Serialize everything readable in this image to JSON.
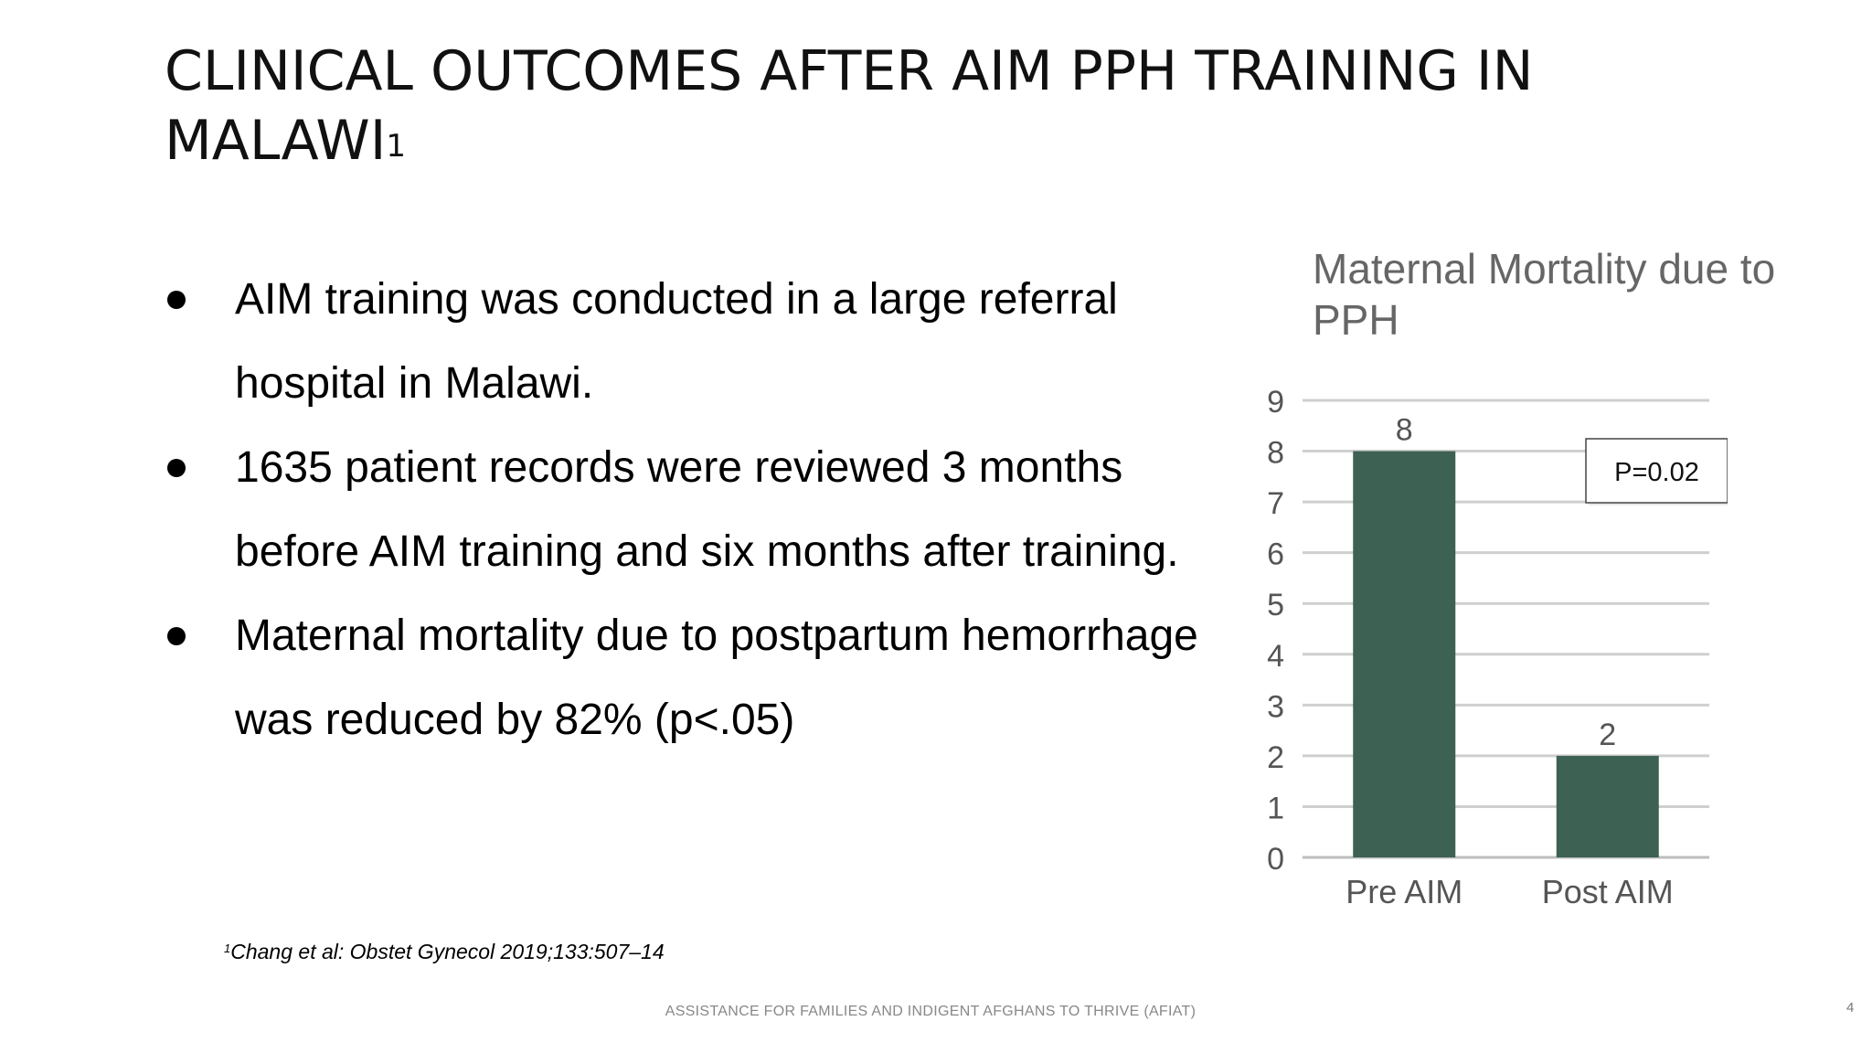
{
  "slide": {
    "title": "CLINICAL OUTCOMES AFTER AIM PPH TRAINING IN MALAWI",
    "title_sup": "1",
    "bullets": [
      "AIM training was conducted in a large referral hospital in Malawi.",
      "1635 patient records were reviewed 3 months before AIM training and six months after training.",
      "Maternal mortality due to postpartum hemorrhage was reduced by 82% (p<.05)"
    ],
    "footnote_sup": "1",
    "footnote": "Chang et al: Obstet Gynecol 2019;133:507–14",
    "footer": "ASSISTANCE FOR FAMILIES AND INDIGENT AFGHANS TO THRIVE (AFIAT)",
    "page_number": "4"
  },
  "chart_data": {
    "type": "bar",
    "title": "Maternal Mortality due to PPH",
    "categories": [
      "Pre AIM",
      "Post AIM"
    ],
    "values": [
      8,
      2
    ],
    "data_labels": [
      "8",
      "2"
    ],
    "ylim": [
      0,
      9
    ],
    "yticks": [
      0,
      1,
      2,
      3,
      4,
      5,
      6,
      7,
      8,
      9
    ],
    "grid": true,
    "bar_color": "#3d6153",
    "annotation": "P=0.02"
  }
}
